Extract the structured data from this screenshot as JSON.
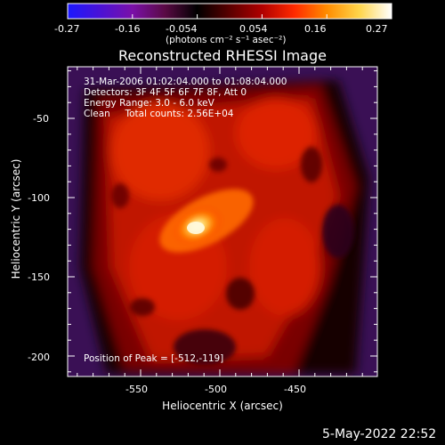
{
  "colorbar": {
    "tick_labels": [
      "-0.27",
      "-0.16",
      "-0.054",
      "0.054",
      "0.16",
      "0.27"
    ],
    "units_label": "(photons cm⁻² s⁻¹ asec⁻²)",
    "range": [
      -0.27,
      0.27
    ],
    "stops": [
      "#1b18ff",
      "#4a12d6",
      "#7a10a8",
      "#5a0a45",
      "#000000",
      "#5a0000",
      "#b00000",
      "#ff2a00",
      "#ff8c00",
      "#ffd54a",
      "#ffffff"
    ]
  },
  "plot": {
    "title": "Reconstructed RHESSI Image",
    "info_lines": [
      "31-Mar-2006 01:02:04.000 to 01:08:04.000",
      "Detectors: 3F 4F 5F 6F 7F 8F, Att 0",
      "Energy Range: 3.0 - 6.0 keV",
      "Clean     Total counts: 2.56E+04"
    ],
    "peak_text": "Position of Peak = [-512,-119]",
    "xlabel": "Heliocentric X (arcsec)",
    "ylabel": "Heliocentric Y (arcsec)",
    "x_tick_labels": [
      "-550",
      "-500",
      "-450"
    ],
    "y_tick_labels": [
      "-50",
      "-100",
      "-150",
      "-200"
    ]
  },
  "footer": {
    "timestamp": "5-May-2022 22:52"
  }
}
